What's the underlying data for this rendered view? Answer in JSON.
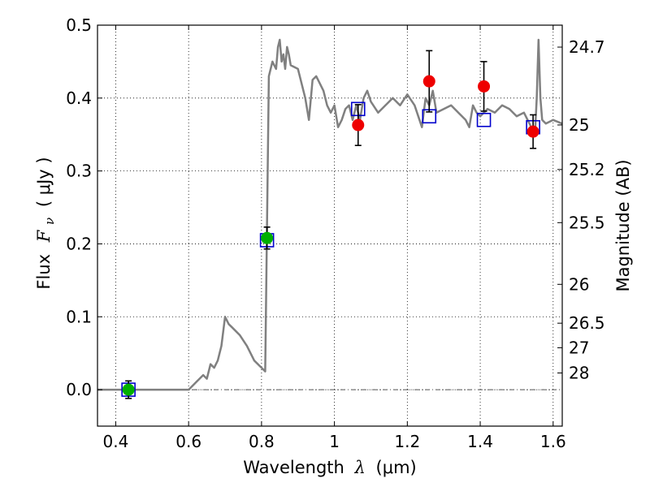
{
  "chart_data": {
    "type": "line",
    "xlabel_text": "Wavelength",
    "xlabel_symbol": "λ",
    "xlabel_unit": "(μm)",
    "ylabel_text": "Flux",
    "ylabel_symbol": "F",
    "ylabel_sub": "ν",
    "ylabel_unit": "( μJy )",
    "y2label": "Magnitude (AB)",
    "xlim": [
      0.35,
      1.625
    ],
    "ylim": [
      -0.05,
      0.5
    ],
    "x_ticks": [
      0.4,
      0.6,
      0.8,
      1.0,
      1.2,
      1.4,
      1.6
    ],
    "x_tick_labels": [
      "0.4",
      "0.6",
      "0.8",
      "1",
      "1.2",
      "1.4",
      "1.6"
    ],
    "y_ticks": [
      0.0,
      0.1,
      0.2,
      0.3,
      0.4,
      0.5
    ],
    "y_tick_labels": [
      "0.0",
      "0.1",
      "0.2",
      "0.3",
      "0.4",
      "0.5"
    ],
    "mag_ticks": [
      {
        "label": "24.7",
        "flux": 0.4699
      },
      {
        "label": "25",
        "flux": 0.3631
      },
      {
        "label": "25.2",
        "flux": 0.302
      },
      {
        "label": "25.5",
        "flux": 0.2291
      },
      {
        "label": "26",
        "flux": 0.1445
      },
      {
        "label": "26.5",
        "flux": 0.0912
      },
      {
        "label": "27",
        "flux": 0.0575
      },
      {
        "label": "28",
        "flux": 0.0229
      }
    ],
    "grid": true,
    "zero_line": true,
    "colors": {
      "model": "#808080",
      "box": "#0000cc",
      "green_point": "#00b000",
      "red_point": "#ee0000",
      "errorbar": "#000000"
    },
    "series": [
      {
        "kind": "model_spectrum",
        "x": [
          0.35,
          0.5,
          0.6,
          0.62,
          0.64,
          0.65,
          0.66,
          0.67,
          0.68,
          0.69,
          0.7,
          0.71,
          0.72,
          0.74,
          0.76,
          0.78,
          0.8,
          0.81,
          0.82,
          0.825,
          0.83,
          0.84,
          0.845,
          0.85,
          0.855,
          0.86,
          0.865,
          0.87,
          0.875,
          0.88,
          0.9,
          0.92,
          0.93,
          0.94,
          0.95,
          0.96,
          0.97,
          0.98,
          0.99,
          1.0,
          1.01,
          1.02,
          1.03,
          1.04,
          1.05,
          1.06,
          1.07,
          1.08,
          1.09,
          1.1,
          1.12,
          1.14,
          1.16,
          1.18,
          1.2,
          1.22,
          1.24,
          1.25,
          1.26,
          1.27,
          1.28,
          1.3,
          1.32,
          1.34,
          1.36,
          1.37,
          1.38,
          1.39,
          1.4,
          1.42,
          1.44,
          1.46,
          1.48,
          1.5,
          1.52,
          1.53,
          1.54,
          1.55,
          1.555,
          1.56,
          1.565,
          1.57,
          1.58,
          1.6,
          1.625
        ],
        "y": [
          0.0,
          0.0,
          0.0,
          0.01,
          0.02,
          0.015,
          0.035,
          0.03,
          0.04,
          0.06,
          0.1,
          0.09,
          0.085,
          0.075,
          0.06,
          0.04,
          0.03,
          0.025,
          0.43,
          0.44,
          0.45,
          0.44,
          0.47,
          0.48,
          0.45,
          0.46,
          0.44,
          0.47,
          0.46,
          0.445,
          0.44,
          0.4,
          0.37,
          0.425,
          0.43,
          0.42,
          0.41,
          0.39,
          0.38,
          0.39,
          0.36,
          0.37,
          0.385,
          0.39,
          0.37,
          0.39,
          0.37,
          0.4,
          0.41,
          0.395,
          0.38,
          0.39,
          0.4,
          0.39,
          0.405,
          0.39,
          0.36,
          0.4,
          0.39,
          0.41,
          0.38,
          0.385,
          0.39,
          0.38,
          0.37,
          0.36,
          0.39,
          0.38,
          0.375,
          0.385,
          0.38,
          0.39,
          0.385,
          0.375,
          0.38,
          0.37,
          0.36,
          0.35,
          0.4,
          0.48,
          0.4,
          0.37,
          0.365,
          0.37,
          0.365
        ]
      },
      {
        "kind": "model_boxes",
        "x": [
          0.435,
          0.815,
          1.065,
          1.26,
          1.41,
          1.545
        ],
        "y": [
          0.0,
          0.205,
          0.385,
          0.375,
          0.37,
          0.36
        ]
      },
      {
        "kind": "green_points",
        "x": [
          0.435,
          0.815
        ],
        "y": [
          0.0,
          0.208
        ],
        "yerr": [
          0.012,
          0.015
        ]
      },
      {
        "kind": "red_points",
        "x": [
          1.065,
          1.26,
          1.41,
          1.545
        ],
        "y": [
          0.363,
          0.423,
          0.416,
          0.354
        ],
        "yerr": [
          0.028,
          0.042,
          0.034,
          0.023
        ]
      }
    ]
  }
}
